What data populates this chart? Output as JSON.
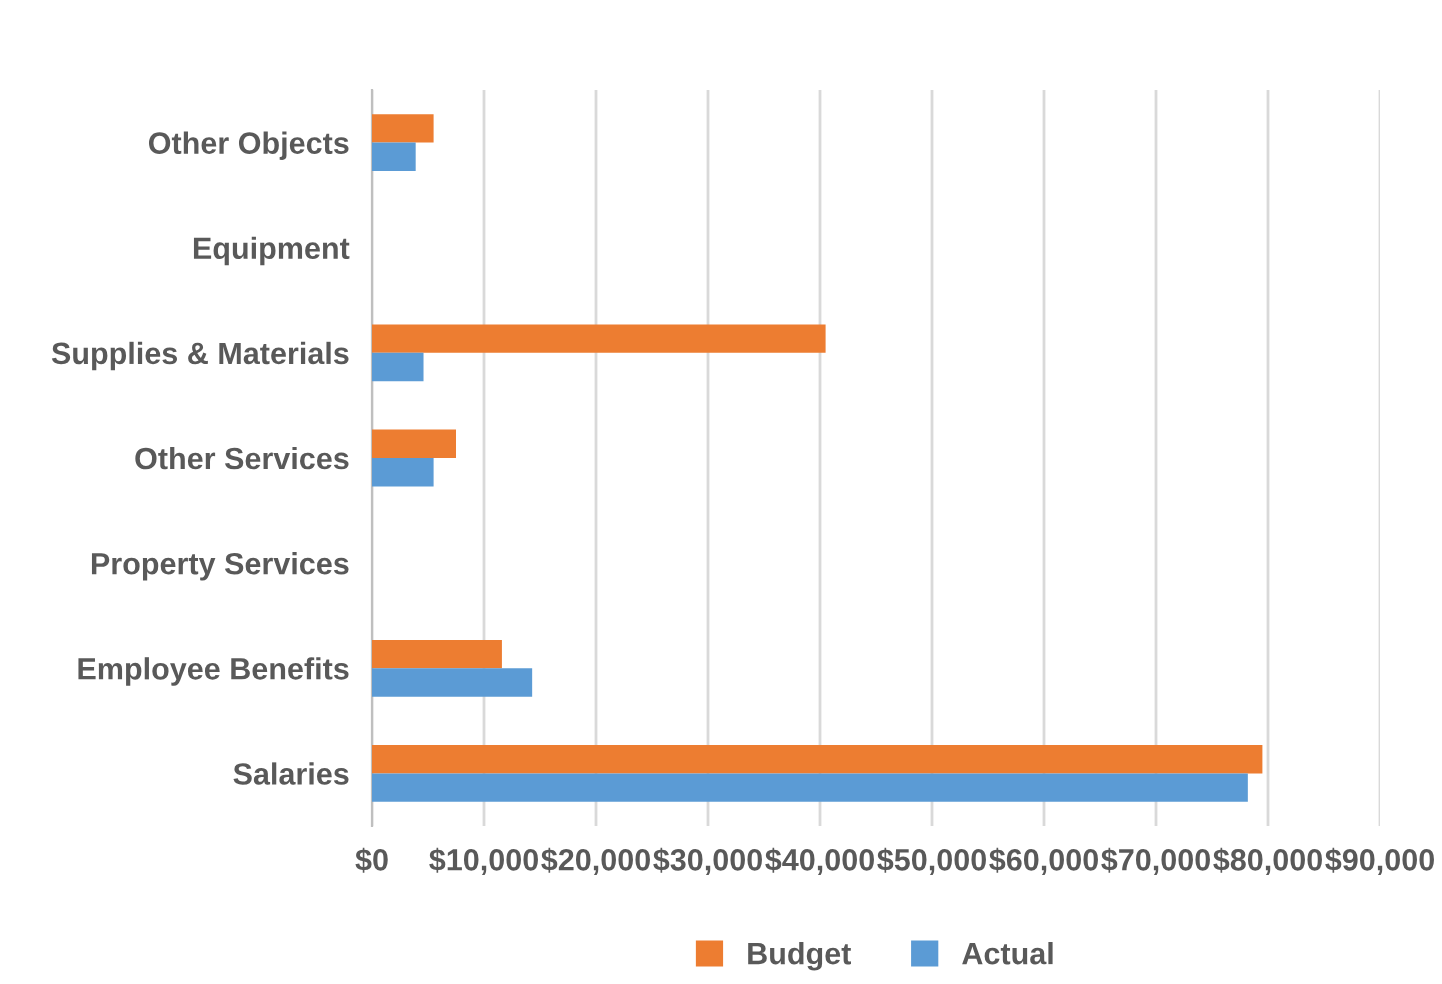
{
  "chart_data": {
    "type": "bar",
    "orientation": "horizontal",
    "categories": [
      "Other Objects",
      "Equipment",
      "Supplies & Materials",
      "Other Services",
      "Property Services",
      "Employee Benefits",
      "Salaries"
    ],
    "series": [
      {
        "name": "Budget",
        "color": "#ed7d31",
        "values": [
          5500,
          0,
          40500,
          7500,
          0,
          11600,
          79500
        ]
      },
      {
        "name": "Actual",
        "color": "#5b9bd5",
        "values": [
          3900,
          0,
          4600,
          5500,
          0,
          14300,
          78200
        ]
      }
    ],
    "xlim": [
      0,
      90000
    ],
    "xticks": [
      {
        "value": 0,
        "label": "$0"
      },
      {
        "value": 10000,
        "label": "$10,000"
      },
      {
        "value": 20000,
        "label": "$20,000"
      },
      {
        "value": 30000,
        "label": "$30,000"
      },
      {
        "value": 40000,
        "label": "$40,000"
      },
      {
        "value": 50000,
        "label": "$50,000"
      },
      {
        "value": 60000,
        "label": "$60,000"
      },
      {
        "value": 70000,
        "label": "$70,000"
      },
      {
        "value": 80000,
        "label": "$80,000"
      },
      {
        "value": 90000,
        "label": "$90,000"
      }
    ],
    "grid": "x",
    "legend": "bottom"
  }
}
